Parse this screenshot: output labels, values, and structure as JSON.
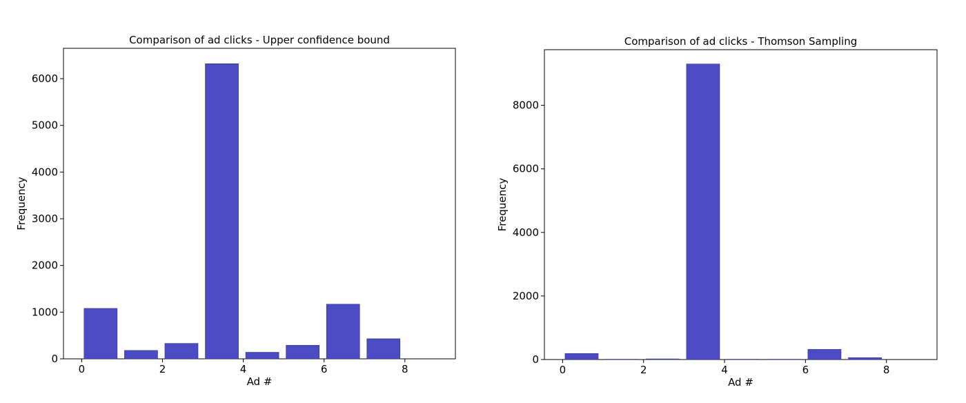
{
  "chart_data": [
    {
      "type": "bar",
      "title": "Comparison of ad clicks - Upper confidence bound",
      "xlabel": "Ad #",
      "ylabel": "Frequency",
      "x": [
        0,
        1,
        2,
        3,
        4,
        5,
        6,
        7,
        8
      ],
      "values": [
        1080,
        180,
        330,
        6320,
        140,
        290,
        1170,
        430,
        0
      ],
      "xlim": [
        -0.45,
        9.25
      ],
      "ylim": [
        0,
        6650
      ],
      "xticks": [
        0,
        2,
        4,
        6,
        8
      ],
      "yticks": [
        0,
        1000,
        2000,
        3000,
        4000,
        5000,
        6000
      ],
      "grid": false,
      "bar_color": "#4b4bc4"
    },
    {
      "type": "bar",
      "title": "Comparison of ad clicks - Thomson Sampling",
      "xlabel": "Ad #",
      "ylabel": "Frequency",
      "x": [
        0,
        1,
        2,
        3,
        4,
        5,
        6,
        7,
        8
      ],
      "values": [
        190,
        10,
        20,
        9300,
        10,
        10,
        320,
        60,
        0
      ],
      "xlim": [
        -0.45,
        9.25
      ],
      "ylim": [
        0,
        9750
      ],
      "xticks": [
        0,
        2,
        4,
        6,
        8
      ],
      "yticks": [
        0,
        2000,
        4000,
        6000,
        8000
      ],
      "grid": false,
      "bar_color": "#4b4bc4"
    }
  ]
}
